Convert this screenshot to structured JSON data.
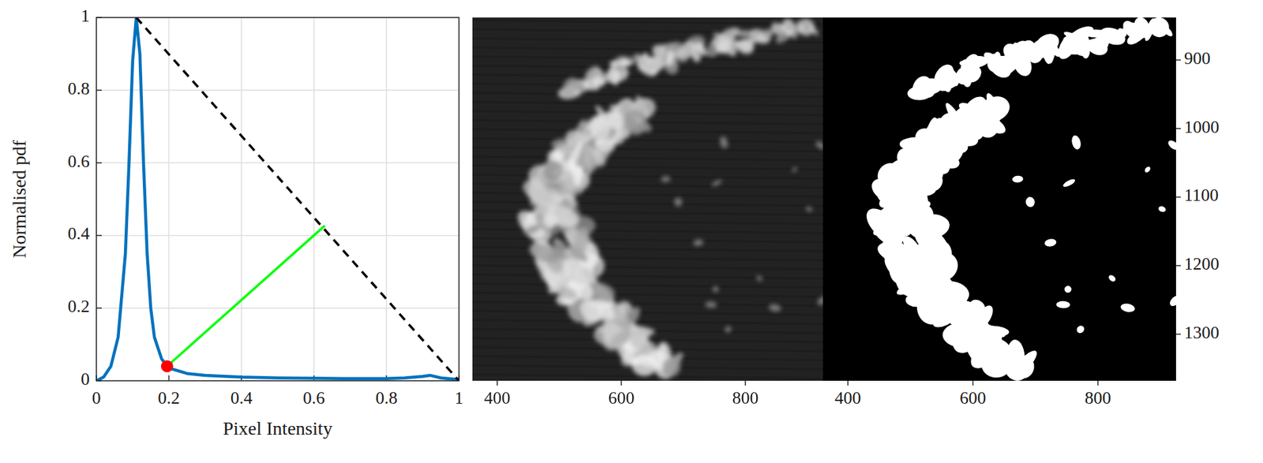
{
  "chart_data": [
    {
      "type": "line",
      "xlabel": "Pixel Intensity",
      "ylabel": "Normalised pdf",
      "xlim": [
        0,
        1
      ],
      "ylim": [
        0,
        1
      ],
      "xticks": [
        0,
        0.2,
        0.4,
        0.6,
        0.8,
        1
      ],
      "yticks": [
        0,
        0.2,
        0.4,
        0.6,
        0.8,
        1
      ],
      "grid": true,
      "series": [
        {
          "type": "line",
          "color": "#0072bd",
          "line_style": "solid",
          "x": [
            0,
            0.02,
            0.04,
            0.06,
            0.08,
            0.09,
            0.1,
            0.11,
            0.12,
            0.13,
            0.14,
            0.15,
            0.16,
            0.18,
            0.2,
            0.25,
            0.3,
            0.4,
            0.5,
            0.6,
            0.7,
            0.8,
            0.85,
            0.9,
            0.92,
            0.95,
            1
          ],
          "values": [
            0,
            0.01,
            0.04,
            0.12,
            0.35,
            0.6,
            0.88,
            1,
            0.9,
            0.6,
            0.35,
            0.2,
            0.12,
            0.06,
            0.035,
            0.02,
            0.015,
            0.01,
            0.008,
            0.007,
            0.006,
            0.006,
            0.008,
            0.012,
            0.015,
            0.008,
            0.003
          ]
        },
        {
          "type": "line",
          "color": "#000000",
          "line_style": "dashed",
          "x": [
            0.11,
            1
          ],
          "values": [
            1,
            0
          ]
        },
        {
          "type": "line",
          "color": "#00ff00",
          "line_style": "solid",
          "x": [
            0.195,
            0.63
          ],
          "values": [
            0.04,
            0.427
          ]
        },
        {
          "type": "scatter",
          "color": "#ff0000",
          "marker": "circle",
          "x": [
            0.195
          ],
          "values": [
            0.04
          ]
        }
      ]
    },
    {
      "type": "image",
      "xlim": [
        360,
        925
      ],
      "ylim": [
        838,
        1368
      ],
      "xticks": [
        400,
        600,
        800
      ],
      "tick_labels": "x"
    },
    {
      "type": "mask",
      "xlim": [
        360,
        925
      ],
      "ylim": [
        838,
        1368
      ],
      "xticks": [
        400,
        600,
        800
      ],
      "yticks": [
        900,
        1000,
        1100,
        1200,
        1300
      ],
      "tick_labels": true
    }
  ]
}
